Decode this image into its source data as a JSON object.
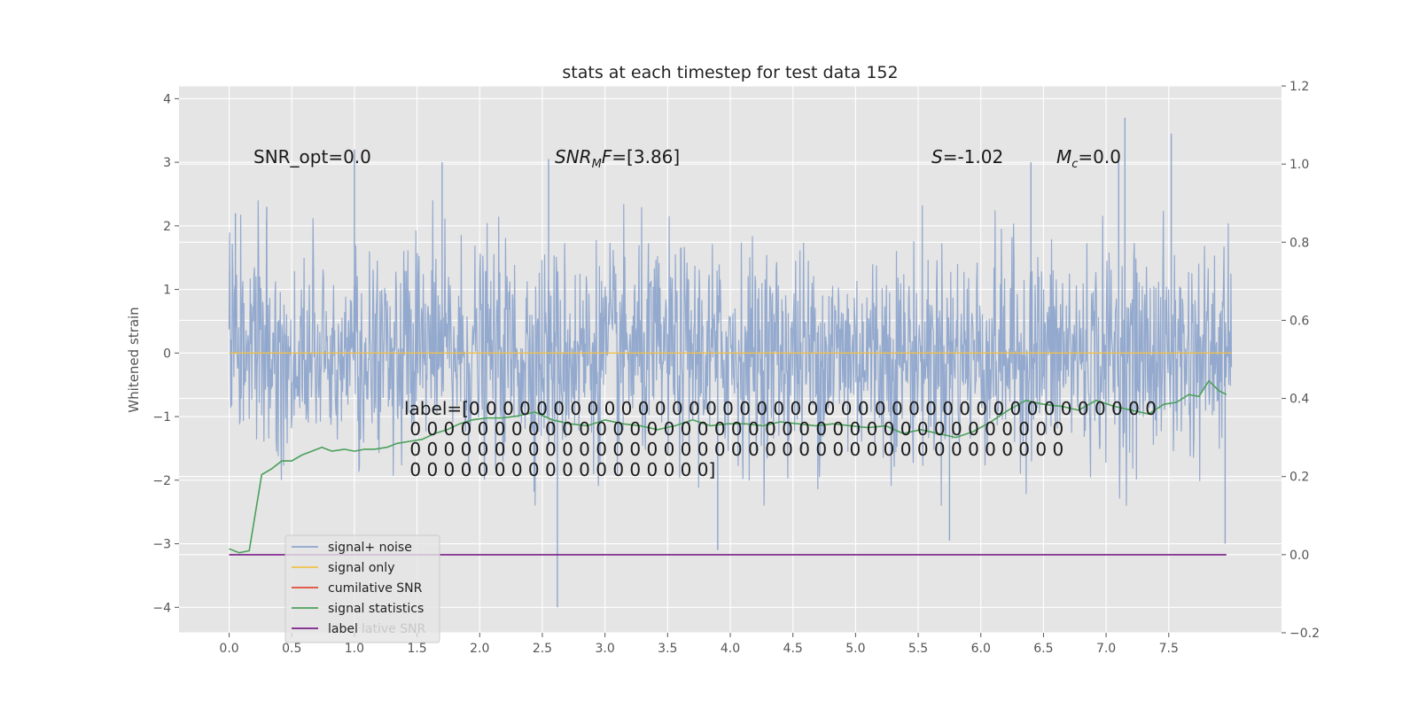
{
  "chart_data": {
    "type": "line",
    "title": "stats at each timestep for test data 152",
    "xlabel": "",
    "ylabel": "Whitened strain",
    "y2label": "",
    "xlim": [
      -0.4,
      8.4
    ],
    "ylim": [
      -4.4,
      4.2
    ],
    "y2lim": [
      -0.2,
      1.2
    ],
    "xticks": [
      0.0,
      0.5,
      1.0,
      1.5,
      2.0,
      2.5,
      3.0,
      3.5,
      4.0,
      4.5,
      5.0,
      5.5,
      6.0,
      6.5,
      7.0,
      7.5
    ],
    "xtick_labels": [
      "0.0",
      "0.5",
      "1.0",
      "1.5",
      "2.0",
      "2.5",
      "3.0",
      "3.5",
      "4.0",
      "4.5",
      "5.0",
      "5.5",
      "6.0",
      "6.5",
      "7.0",
      "7.5"
    ],
    "yticks": [
      -4,
      -3,
      -2,
      -1,
      0,
      1,
      2,
      3,
      4
    ],
    "ytick_labels": [
      "−4",
      "−3",
      "−2",
      "−1",
      "0",
      "1",
      "2",
      "3",
      "4"
    ],
    "y2ticks": [
      -0.2,
      0.0,
      0.2,
      0.4,
      0.6,
      0.8,
      1.0,
      1.2
    ],
    "y2tick_labels": [
      "−0.2",
      "0.0",
      "0.2",
      "0.4",
      "0.6",
      "0.8",
      "1.0",
      "1.2"
    ],
    "grid": true,
    "legend_position": "lower-left",
    "series": [
      {
        "name": "signal+ noise",
        "axis": "left",
        "color": "#8ea5cc",
        "style": "dense-noise",
        "x_range": [
          0.0,
          8.0
        ],
        "typical_amplitude": 1.6,
        "peaks": [
          [
            0.05,
            2.2
          ],
          [
            0.3,
            2.3
          ],
          [
            1.0,
            3.2
          ],
          [
            1.7,
            3.0
          ],
          [
            2.55,
            3.05
          ],
          [
            2.62,
            -4.0
          ],
          [
            3.9,
            -3.1
          ],
          [
            5.75,
            -2.95
          ],
          [
            6.4,
            3.0
          ],
          [
            7.1,
            3.15
          ],
          [
            7.15,
            3.7
          ],
          [
            7.52,
            3.45
          ],
          [
            7.95,
            -3.0
          ]
        ]
      },
      {
        "name": "signal only",
        "axis": "left",
        "color": "#f0c04a",
        "x": [
          0.0,
          8.0
        ],
        "values": [
          0.0,
          0.0
        ]
      },
      {
        "name": "cumilative SNR",
        "axis": "right",
        "color": "#e24a33",
        "x": [],
        "values": []
      },
      {
        "name": "signal statistics",
        "axis": "right",
        "color": "#4aa05a",
        "x": [
          0.0,
          0.08,
          0.16,
          0.26,
          0.34,
          0.42,
          0.5,
          0.58,
          0.66,
          0.74,
          0.82,
          0.92,
          1.0,
          1.08,
          1.16,
          1.26,
          1.34,
          1.44,
          1.54,
          1.64,
          1.74,
          1.84,
          1.94,
          2.06,
          2.18,
          2.3,
          2.44,
          2.58,
          2.72,
          2.86,
          3.0,
          3.14,
          3.28,
          3.42,
          3.56,
          3.7,
          3.84,
          3.98,
          4.12,
          4.26,
          4.4,
          4.54,
          4.68,
          4.82,
          4.96,
          5.1,
          5.24,
          5.38,
          5.52,
          5.66,
          5.8,
          5.94,
          6.08,
          6.22,
          6.36,
          6.5,
          6.64,
          6.78,
          6.92,
          7.06,
          7.2,
          7.34,
          7.46,
          7.56,
          7.66,
          7.74,
          7.82,
          7.9,
          7.96
        ],
        "values": [
          0.015,
          0.005,
          0.01,
          0.205,
          0.22,
          0.24,
          0.24,
          0.255,
          0.265,
          0.275,
          0.265,
          0.27,
          0.265,
          0.27,
          0.27,
          0.275,
          0.285,
          0.29,
          0.295,
          0.31,
          0.32,
          0.335,
          0.345,
          0.35,
          0.35,
          0.355,
          0.365,
          0.345,
          0.335,
          0.33,
          0.345,
          0.335,
          0.33,
          0.32,
          0.33,
          0.345,
          0.33,
          0.335,
          0.335,
          0.33,
          0.34,
          0.335,
          0.33,
          0.335,
          0.33,
          0.325,
          0.33,
          0.31,
          0.32,
          0.31,
          0.3,
          0.315,
          0.34,
          0.37,
          0.395,
          0.385,
          0.38,
          0.37,
          0.395,
          0.38,
          0.37,
          0.36,
          0.385,
          0.39,
          0.41,
          0.405,
          0.445,
          0.42,
          0.41
        ]
      },
      {
        "name": "label",
        "axis": "right",
        "color": "#7a1e8a",
        "x": [
          0.0,
          7.96
        ],
        "values": [
          0.0,
          0.0
        ]
      }
    ],
    "annotations": [
      {
        "id": "snr-opt",
        "text": "SNR_opt=0.0"
      },
      {
        "id": "snr-mf",
        "text_main": "SNR",
        "text_sub": "M",
        "text_rest": "F=[3.86]"
      },
      {
        "id": "s",
        "text_main": "S",
        "text_rest": "=-1.02"
      },
      {
        "id": "mc",
        "text_main": "M",
        "text_sub": "c",
        "text_rest": "=0.0"
      }
    ],
    "label_text_lines": [
      "label=[0 0 0 0 0 0 0 0 0 0 0 0 0 0 0 0 0 0 0 0 0 0 0 0 0 0 0 0 0 0 0 0 0 0 0 0 0 0 0 0 0",
      " 0 0 0 0 0 0 0 0 0 0 0 0 0 0 0 0 0 0 0 0 0 0 0 0 0 0 0 0 0 0 0 0 0 0 0 0 0 0 0",
      " 0 0 0 0 0 0 0 0 0 0 0 0 0 0 0 0 0 0 0 0 0 0 0 0 0 0 0 0 0 0 0 0 0 0 0 0 0 0 0",
      " 0 0 0 0 0 0 0 0 0 0 0 0 0 0 0 0 0 0]"
    ],
    "legend": [
      {
        "label": "signal+ noise",
        "color": "#8ea5cc"
      },
      {
        "label": "signal only",
        "color": "#f0c04a"
      },
      {
        "label": "cumilative SNR",
        "color": "#e24a33"
      },
      {
        "label": "signal statistics",
        "color": "#4aa05a"
      },
      {
        "label": "label",
        "color": "#7a1e8a"
      }
    ],
    "legend_overlap_text": "lative SNR"
  }
}
